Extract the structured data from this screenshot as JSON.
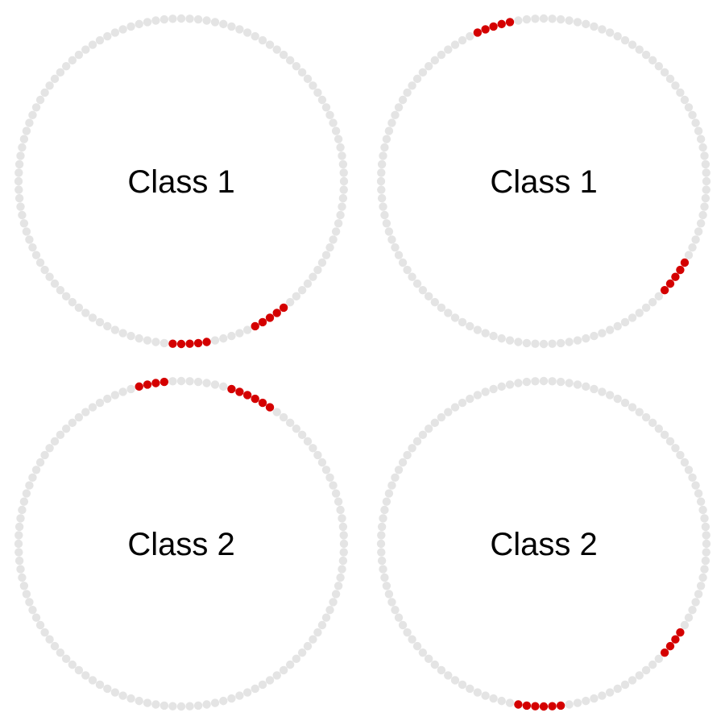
{
  "colors": {
    "background": "#ffffff",
    "inactive_dot": "#e4e4e4",
    "active_dot": "#d40000",
    "label": "#000000"
  },
  "dots_per_ring": 120,
  "panels": [
    {
      "label": "Class 1",
      "highlighted_runs": [
        {
          "start_index": 59,
          "count": 5
        },
        {
          "start_index": 69,
          "count": 5
        }
      ]
    },
    {
      "label": "Class 1",
      "highlighted_runs": [
        {
          "start_index": 4,
          "count": 5
        },
        {
          "start_index": 76,
          "count": 5
        }
      ]
    },
    {
      "label": "Class 2",
      "highlighted_runs": [
        {
          "start_index": 2,
          "count": 4
        },
        {
          "start_index": 109,
          "count": 6
        }
      ]
    },
    {
      "label": "Class 2",
      "highlighted_runs": [
        {
          "start_index": 57,
          "count": 6
        },
        {
          "start_index": 76,
          "count": 4
        }
      ]
    }
  ]
}
